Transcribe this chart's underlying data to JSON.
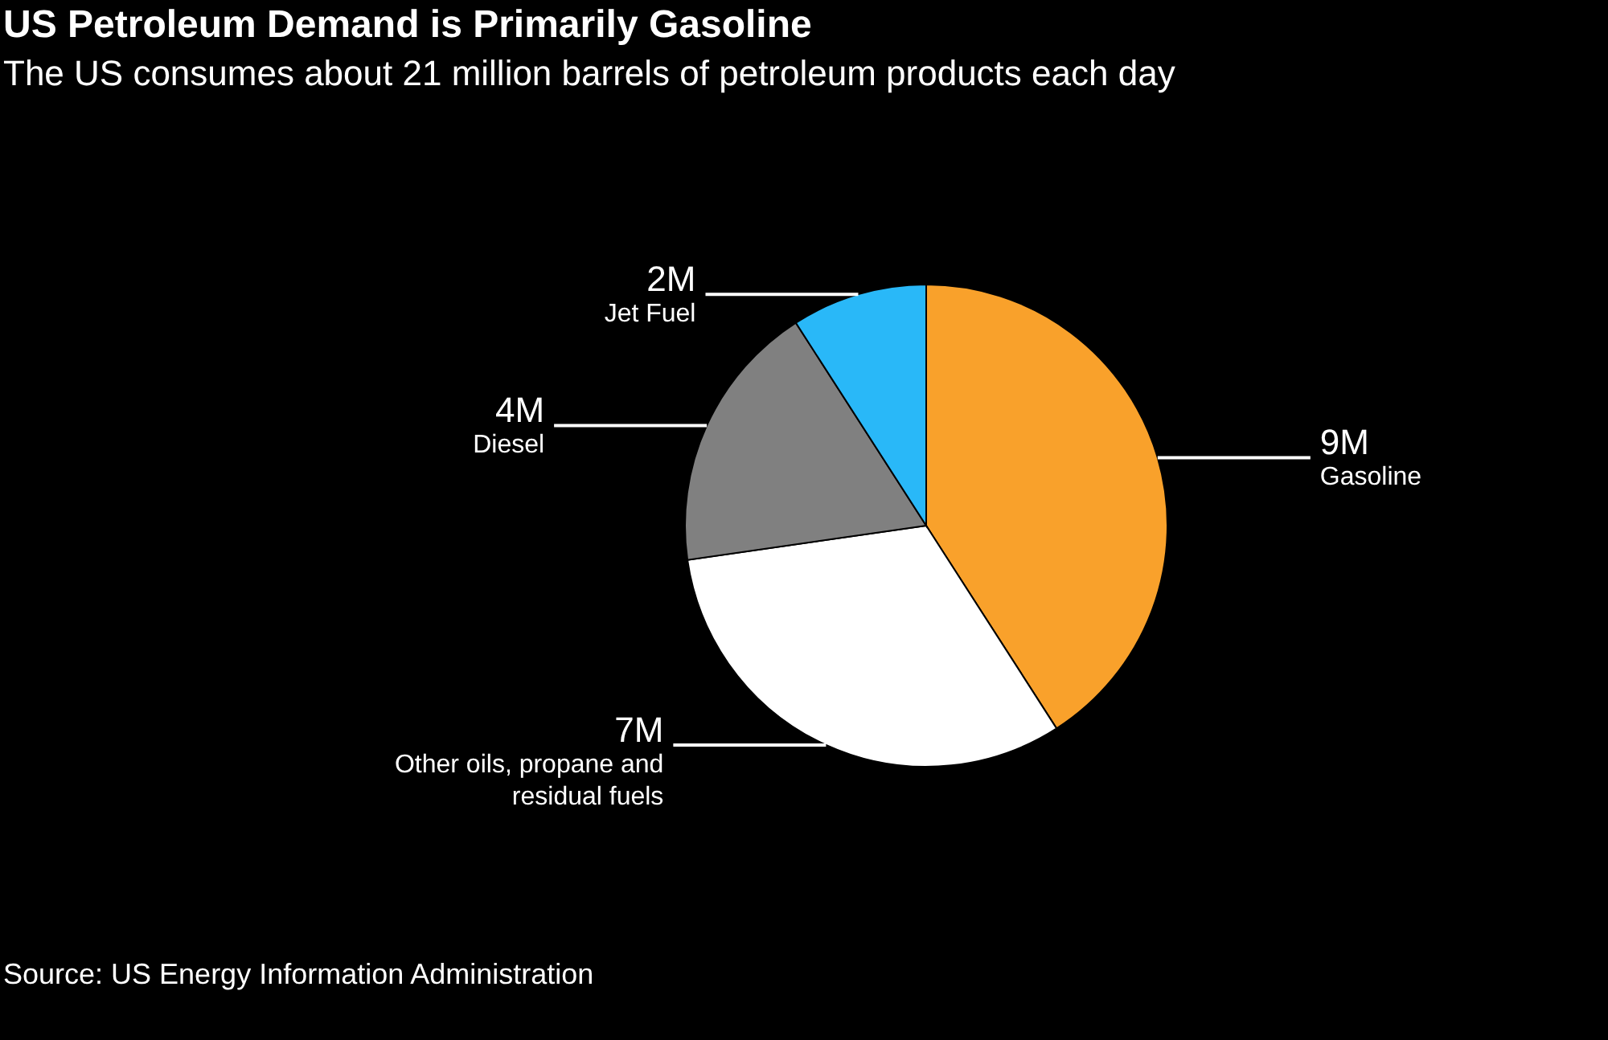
{
  "chart_data": {
    "type": "pie",
    "title": "US Petroleum Demand is Primarily Gasoline",
    "subtitle": "The US consumes about 21 million barrels of petroleum products each day",
    "categories": [
      "Gasoline",
      "Other oils, propane and residual fuels",
      "Diesel",
      "Jet Fuel"
    ],
    "values": [
      9,
      7,
      4,
      2
    ],
    "colors": [
      "#f9a12b",
      "#ffffff",
      "#808080",
      "#29b8f8"
    ],
    "value_labels": [
      "9M",
      "7M",
      "4M",
      "2M"
    ],
    "annotations": [
      "Source: US Energy Information Administration"
    ]
  }
}
